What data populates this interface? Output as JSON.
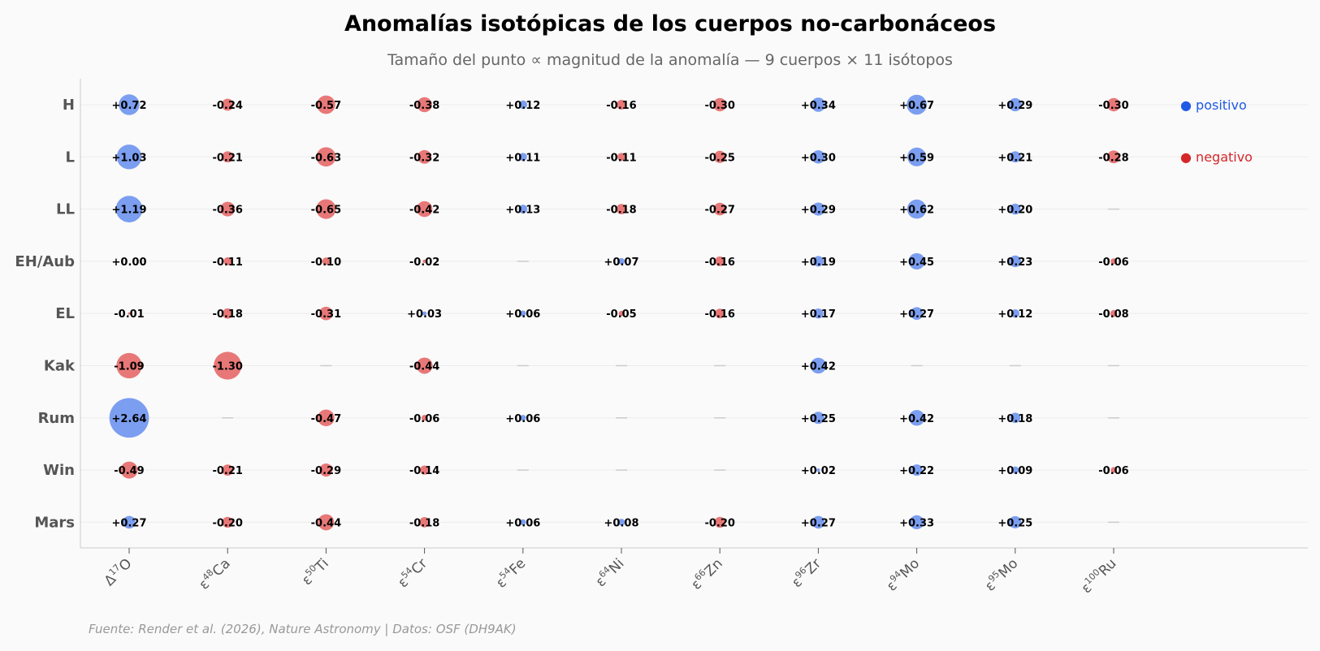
{
  "chart_data": {
    "type": "scatter",
    "title": "Anomalías isotópicas de los cuerpos no-carbonáceos",
    "subtitle": "Tamaño del punto ∝ magnitud de la anomalía — 9 cuerpos × 11 isótopos",
    "source": "Fuente: Render et al. (2026), Nature Astronomy | Datos: OSF (DH9AK)",
    "columns": [
      {
        "pre": "Δ",
        "sup": "17",
        "el": "O"
      },
      {
        "pre": "ε",
        "sup": "48",
        "el": "Ca"
      },
      {
        "pre": "ε",
        "sup": "50",
        "el": "Ti"
      },
      {
        "pre": "ε",
        "sup": "54",
        "el": "Cr"
      },
      {
        "pre": "ε",
        "sup": "54",
        "el": "Fe"
      },
      {
        "pre": "ε",
        "sup": "64",
        "el": "Ni"
      },
      {
        "pre": "ε",
        "sup": "66",
        "el": "Zn"
      },
      {
        "pre": "ε",
        "sup": "96",
        "el": "Zr"
      },
      {
        "pre": "ε",
        "sup": "94",
        "el": "Mo"
      },
      {
        "pre": "ε",
        "sup": "95",
        "el": "Mo"
      },
      {
        "pre": "ε",
        "sup": "100",
        "el": "Ru"
      }
    ],
    "rows": [
      "H",
      "L",
      "LL",
      "EH/Aub",
      "EL",
      "Kak",
      "Rum",
      "Win",
      "Mars"
    ],
    "values": [
      [
        0.72,
        -0.24,
        -0.57,
        -0.38,
        0.12,
        -0.16,
        -0.3,
        0.34,
        0.67,
        0.29,
        -0.3
      ],
      [
        1.03,
        -0.21,
        -0.63,
        -0.32,
        0.11,
        -0.11,
        -0.25,
        0.3,
        0.59,
        0.21,
        -0.28
      ],
      [
        1.19,
        -0.36,
        -0.65,
        -0.42,
        0.13,
        -0.18,
        -0.27,
        0.29,
        0.62,
        0.2,
        null
      ],
      [
        0.0,
        -0.11,
        -0.1,
        -0.02,
        null,
        0.07,
        -0.16,
        0.19,
        0.45,
        0.23,
        -0.06
      ],
      [
        -0.01,
        -0.18,
        -0.31,
        0.03,
        0.06,
        -0.05,
        -0.16,
        0.17,
        0.27,
        0.12,
        -0.08
      ],
      [
        -1.09,
        -1.3,
        null,
        -0.44,
        null,
        null,
        null,
        0.42,
        null,
        null,
        null
      ],
      [
        2.64,
        null,
        -0.47,
        -0.06,
        0.06,
        null,
        null,
        0.25,
        0.42,
        0.18,
        null
      ],
      [
        -0.49,
        -0.21,
        -0.29,
        -0.14,
        null,
        null,
        null,
        0.02,
        0.22,
        0.09,
        -0.06
      ],
      [
        0.27,
        -0.2,
        -0.44,
        -0.18,
        0.06,
        0.08,
        -0.2,
        0.27,
        0.33,
        0.25,
        null
      ]
    ],
    "legend": [
      {
        "label": "● positivo",
        "color": "#1f5ae6"
      },
      {
        "label": "● negativo",
        "color": "#d62728"
      }
    ],
    "legend_position": "right",
    "colors": {
      "positive": "#7b9ef0",
      "negative": "#e87878",
      "missing": "#cccccc"
    },
    "grid": "horizontal"
  }
}
